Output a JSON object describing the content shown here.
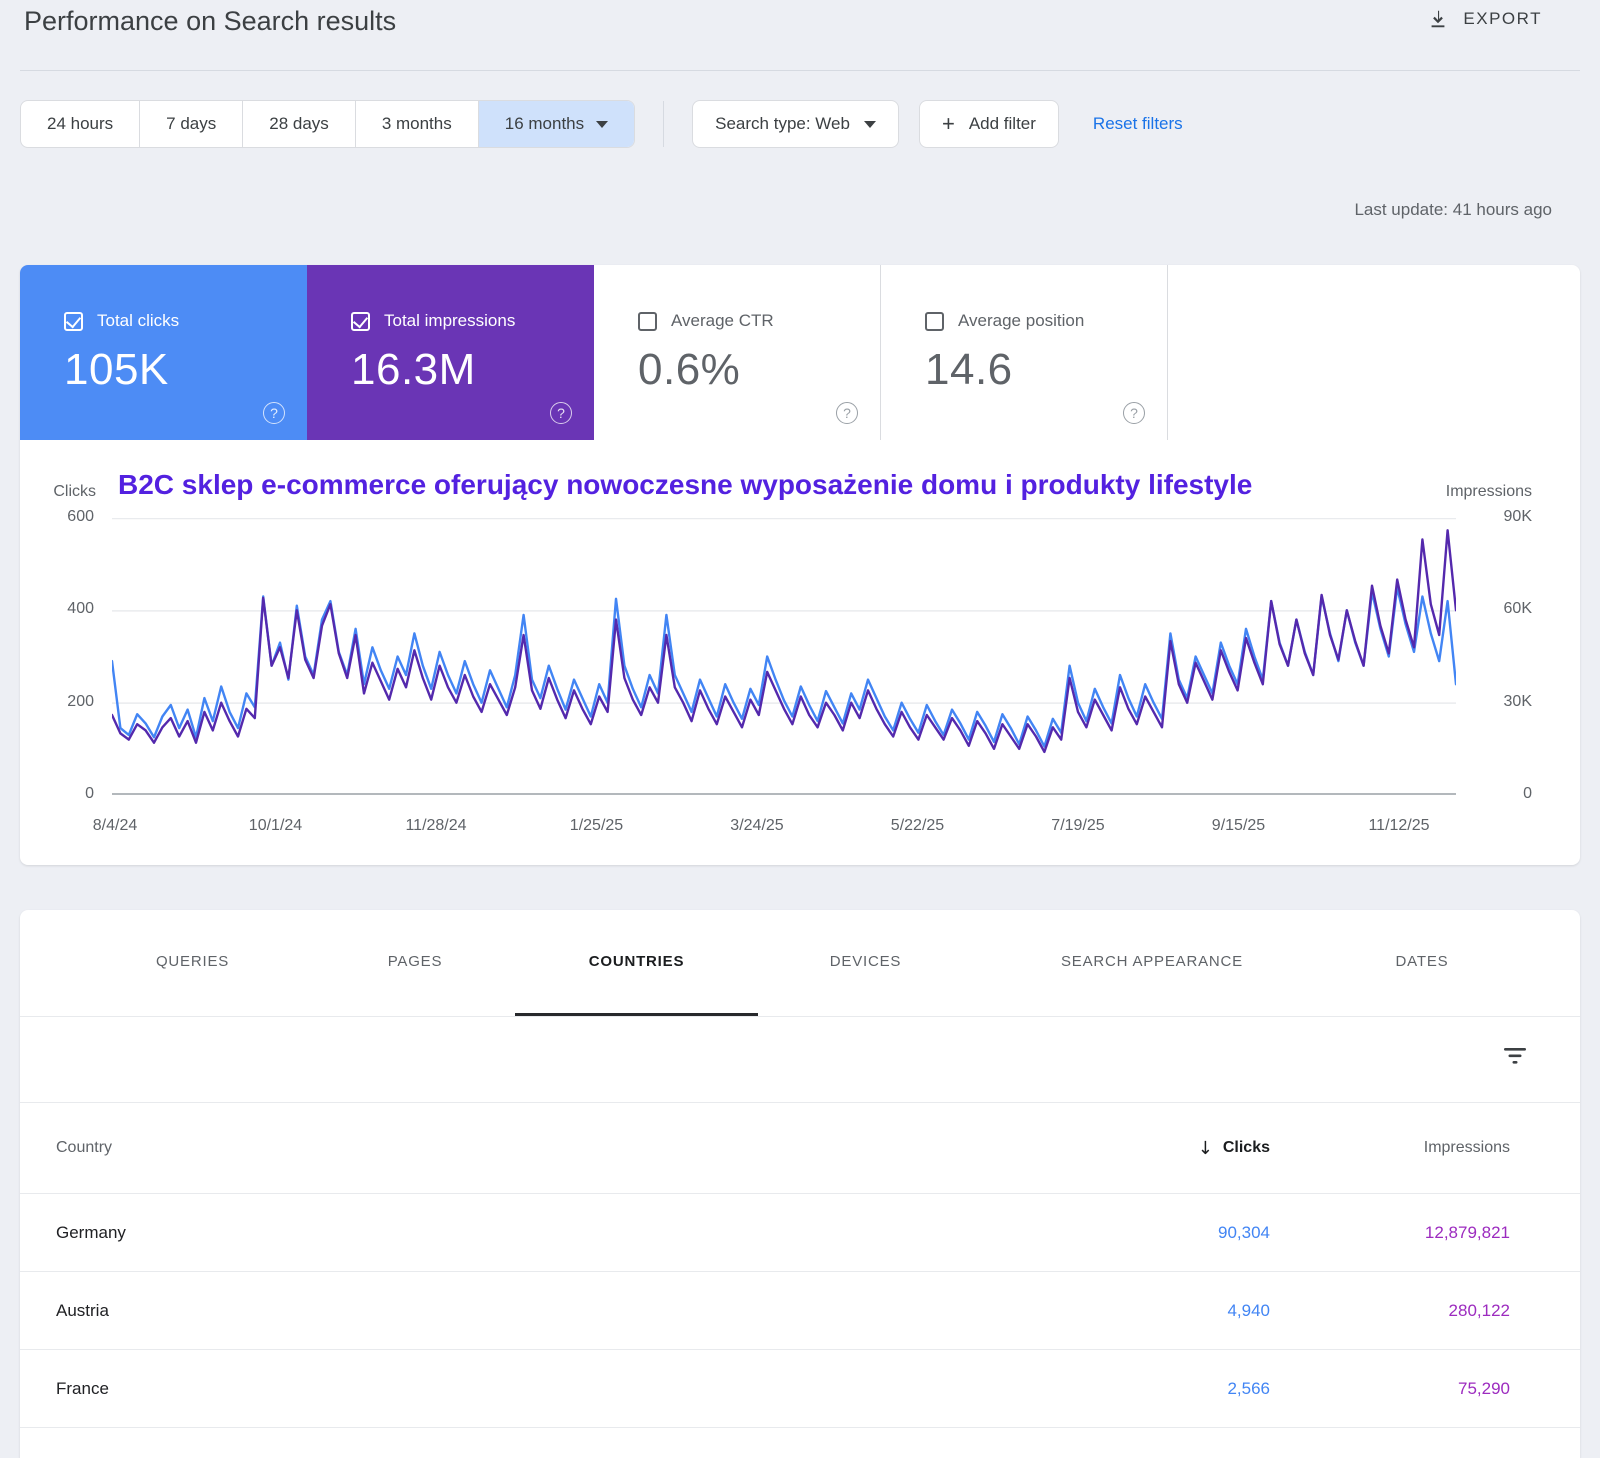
{
  "header": {
    "title": "Performance on Search results",
    "export_label": "EXPORT"
  },
  "filters": {
    "date_ranges": [
      {
        "label": "24 hours"
      },
      {
        "label": "7 days"
      },
      {
        "label": "28 days"
      },
      {
        "label": "3 months"
      },
      {
        "label": "16 months",
        "selected": true
      }
    ],
    "search_type": "Search type: Web",
    "add_filter_label": "Add filter",
    "reset_label": "Reset filters",
    "last_update": "Last update: 41 hours ago"
  },
  "metrics": {
    "cards": [
      {
        "label": "Total clicks",
        "value": "105K",
        "checked": true,
        "color": "#4d8cf5"
      },
      {
        "label": "Total impressions",
        "value": "16.3M",
        "checked": true,
        "color": "#6a35b5"
      },
      {
        "label": "Average CTR",
        "value": "0.6%",
        "checked": false
      },
      {
        "label": "Average position",
        "value": "14.6",
        "checked": false
      }
    ]
  },
  "chart_data": {
    "type": "line",
    "annotation": "B2C sklep e-commerce oferujący nowoczesne wyposażenie domu i produkty lifestyle",
    "left_axis": {
      "label": "Clicks",
      "max": 600,
      "ticks": [
        "600",
        "400",
        "200",
        "0"
      ]
    },
    "right_axis": {
      "label": "Impressions",
      "max": 90,
      "unit": "K",
      "ticks": [
        "90K",
        "60K",
        "30K",
        "0"
      ]
    },
    "x_ticks": [
      "8/4/24",
      "10/1/24",
      "11/28/24",
      "1/25/25",
      "3/24/25",
      "5/22/25",
      "7/19/25",
      "9/15/25",
      "11/12/25"
    ],
    "grid": true,
    "legend_position": "none",
    "series": [
      {
        "name": "Clicks",
        "color": "#4285f4",
        "axis": "left",
        "ymax": 600,
        "values": [
          290,
          145,
          130,
          175,
          155,
          125,
          170,
          195,
          145,
          185,
          125,
          210,
          160,
          235,
          180,
          145,
          220,
          190,
          430,
          280,
          330,
          250,
          410,
          300,
          260,
          380,
          420,
          310,
          260,
          360,
          240,
          320,
          270,
          230,
          300,
          260,
          350,
          280,
          230,
          310,
          260,
          220,
          290,
          240,
          200,
          270,
          230,
          190,
          260,
          390,
          250,
          210,
          280,
          230,
          185,
          250,
          210,
          170,
          240,
          200,
          425,
          280,
          230,
          190,
          260,
          220,
          390,
          260,
          220,
          180,
          250,
          210,
          170,
          240,
          200,
          165,
          230,
          195,
          300,
          250,
          205,
          170,
          235,
          195,
          160,
          225,
          190,
          155,
          220,
          185,
          250,
          210,
          170,
          140,
          200,
          165,
          135,
          195,
          160,
          130,
          185,
          155,
          120,
          180,
          150,
          115,
          175,
          145,
          110,
          170,
          140,
          105,
          165,
          135,
          280,
          200,
          160,
          230,
          190,
          155,
          260,
          210,
          170,
          240,
          200,
          165,
          350,
          250,
          210,
          300,
          260,
          220,
          330,
          280,
          240,
          360,
          300,
          250,
          420,
          330,
          280,
          380,
          310,
          260,
          430,
          350,
          290,
          400,
          330,
          280,
          440,
          360,
          300,
          450,
          370,
          310,
          430,
          350,
          290,
          420,
          240
        ]
      },
      {
        "name": "Impressions (thousands)",
        "color": "#5429ad",
        "axis": "right",
        "ymax": 90,
        "values": [
          26,
          20,
          18,
          23,
          21,
          17,
          22,
          25,
          19,
          24,
          17,
          27,
          21,
          30,
          24,
          19,
          28,
          25,
          64,
          42,
          48,
          38,
          60,
          44,
          38,
          55,
          62,
          46,
          38,
          52,
          33,
          43,
          37,
          31,
          41,
          35,
          47,
          38,
          31,
          42,
          35,
          30,
          39,
          32,
          27,
          36,
          31,
          26,
          35,
          52,
          34,
          28,
          38,
          31,
          25,
          34,
          28,
          23,
          32,
          27,
          57,
          38,
          31,
          26,
          35,
          30,
          52,
          35,
          30,
          24,
          34,
          28,
          23,
          32,
          27,
          22,
          31,
          26,
          40,
          34,
          28,
          23,
          32,
          26,
          22,
          30,
          26,
          21,
          30,
          25,
          34,
          28,
          23,
          19,
          27,
          22,
          18,
          26,
          22,
          18,
          25,
          21,
          16,
          24,
          20,
          15,
          23,
          19,
          15,
          23,
          19,
          14,
          22,
          18,
          38,
          27,
          22,
          31,
          26,
          21,
          35,
          28,
          23,
          32,
          27,
          22,
          50,
          36,
          30,
          43,
          37,
          31,
          47,
          40,
          34,
          51,
          43,
          36,
          63,
          49,
          42,
          57,
          46,
          39,
          65,
          52,
          44,
          60,
          50,
          42,
          68,
          55,
          46,
          70,
          57,
          48,
          83,
          62,
          52,
          86,
          60
        ]
      }
    ]
  },
  "tabs": [
    {
      "label": "QUERIES",
      "active": false
    },
    {
      "label": "PAGES",
      "active": false
    },
    {
      "label": "COUNTRIES",
      "active": true
    },
    {
      "label": "DEVICES",
      "active": false
    },
    {
      "label": "SEARCH APPEARANCE",
      "active": false
    },
    {
      "label": "DATES",
      "active": false
    }
  ],
  "table": {
    "columns": {
      "country": "Country",
      "clicks": "Clicks",
      "impressions": "Impressions"
    },
    "sort": {
      "column": "Clicks",
      "direction": "desc",
      "arrow": "↓"
    },
    "rows": [
      {
        "country": "Germany",
        "clicks": "90,304",
        "impressions": "12,879,821"
      },
      {
        "country": "Austria",
        "clicks": "4,940",
        "impressions": "280,122"
      },
      {
        "country": "France",
        "clicks": "2,566",
        "impressions": "75,290"
      }
    ]
  },
  "colors": {
    "clicks_blue": "#4285f4",
    "impressions_purple": "#6a35b5",
    "table_clicks": "#4285f4",
    "table_impressions": "#9c2bbf",
    "link_blue": "#1a73e8",
    "annotation_purple": "#5321e0"
  }
}
